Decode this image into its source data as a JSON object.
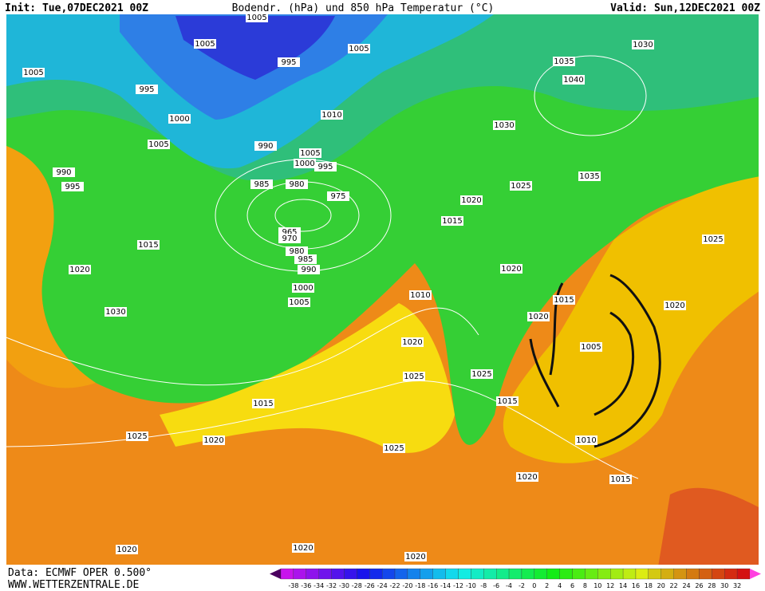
{
  "header": {
    "init": "Init: Tue,07DEC2021 00Z",
    "title": "Bodendr. (hPa) und 850 hPa Temperatur (°C)",
    "valid": "Valid: Sun,12DEC2021 00Z"
  },
  "footer": {
    "source": "Data: ECMWF OPER 0.500°",
    "site": "WWW.WETTERZENTRALE.DE"
  },
  "isobar_labels": [
    "1005",
    "1005",
    "995",
    "1005",
    "1030",
    "1035",
    "1040",
    "1005",
    "995",
    "1000",
    "1010",
    "1030",
    "1005",
    "990",
    "1005",
    "1000",
    "995",
    "990",
    "995",
    "985",
    "980",
    "975",
    "1025",
    "1020",
    "1035",
    "1015",
    "965",
    "970",
    "1025",
    "1015",
    "980",
    "985",
    "990",
    "1020",
    "1020",
    "1000",
    "1010",
    "1015",
    "1005",
    "1020",
    "1030",
    "1020",
    "1020",
    "1005",
    "1025",
    "1025",
    "1015",
    "1015",
    "1025",
    "1020",
    "1010",
    "1025",
    "1020",
    "1015",
    "1020",
    "1020",
    "1020"
  ],
  "colorbar": {
    "ticks": [
      -38,
      -36,
      -34,
      -32,
      -30,
      -28,
      -26,
      -24,
      -22,
      -20,
      -18,
      -16,
      -14,
      -12,
      -10,
      -8,
      -6,
      -4,
      -2,
      0,
      2,
      4,
      6,
      8,
      10,
      12,
      14,
      16,
      18,
      20,
      22,
      24,
      26,
      28,
      30,
      32
    ]
  }
}
